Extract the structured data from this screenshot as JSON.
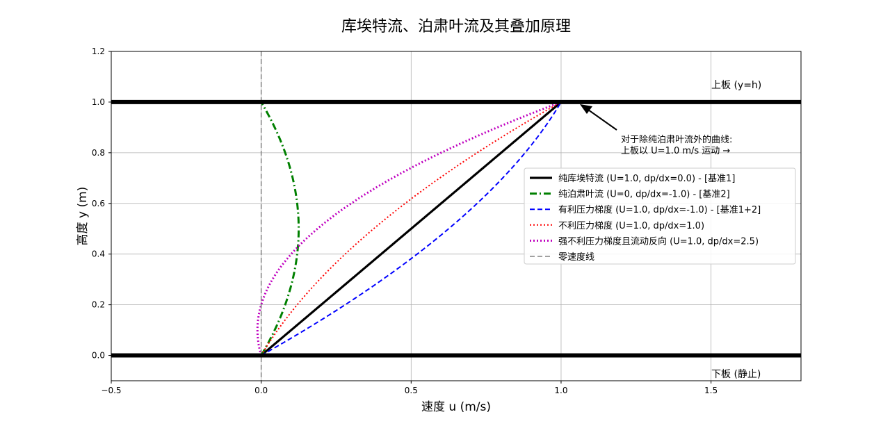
{
  "chart_data": {
    "type": "line",
    "title": "库埃特流、泊肃叶流及其叠加原理",
    "xlabel": "速度 u (m/s)",
    "ylabel": "高度 y (m)",
    "xlim": [
      -0.5,
      1.8
    ],
    "ylim": [
      -0.1,
      1.2
    ],
    "xticks": [
      "−0.5",
      "0.0",
      "0.5",
      "1.0",
      "1.5"
    ],
    "xtick_values": [
      -0.5,
      0.0,
      0.5,
      1.0,
      1.5
    ],
    "yticks": [
      "0.0",
      "0.2",
      "0.4",
      "0.6",
      "0.8",
      "1.0",
      "1.2"
    ],
    "ytick_values": [
      0.0,
      0.2,
      0.4,
      0.6,
      0.8,
      1.0,
      1.2
    ],
    "grid": true,
    "legend_position": "center-right",
    "plates": [
      {
        "label": "上板 (y=h)",
        "y": 1.0
      },
      {
        "label": "下板 (静止)",
        "y": 0.0
      }
    ],
    "annotation": {
      "text_lines": [
        "对于除纯泊肃叶流外的曲线:",
        "上板以 U=1.0 m/s 运动 →"
      ],
      "arrow_to": [
        1.0,
        1.0
      ]
    },
    "series": [
      {
        "name": "纯库埃特流 (U=1.0, dp/dx=0.0) - [基准1]",
        "U": 1.0,
        "dpdx": 0.0,
        "color": "#000000",
        "style": "solid",
        "width": 3.2
      },
      {
        "name": "纯泊肃叶流 (U=0, dp/dx=-1.0) - [基准2]",
        "U": 0.0,
        "dpdx": -1.0,
        "color": "#008000",
        "style": "dashdot",
        "width": 3.0
      },
      {
        "name": "有利压力梯度 (U=1.0, dp/dx=-1.0) - [基准1+2]",
        "U": 1.0,
        "dpdx": -1.0,
        "color": "#0000ff",
        "style": "dashed",
        "width": 2.0
      },
      {
        "name": "不利压力梯度 (U=1.0, dp/dx=1.0)",
        "U": 1.0,
        "dpdx": 1.0,
        "color": "#ff0000",
        "style": "dotted",
        "width": 2.0
      },
      {
        "name": "强不利压力梯度且流动反向 (U=1.0, dp/dx=2.5)",
        "U": 1.0,
        "dpdx": 2.5,
        "color": "#bf00bf",
        "style": "dotted",
        "width": 3.0
      },
      {
        "name": "零速度线",
        "x_constant": 0.0,
        "color": "#808080",
        "style": "dashed",
        "width": 1.5
      }
    ]
  }
}
